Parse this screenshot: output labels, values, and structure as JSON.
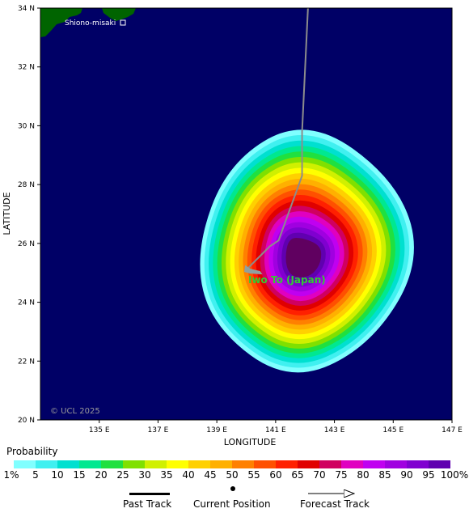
{
  "map": {
    "lon_range": [
      133,
      147
    ],
    "lat_range": [
      20,
      34
    ],
    "x_ticks": [
      {
        "lon": 135,
        "label": "135 E"
      },
      {
        "lon": 137,
        "label": "137 E"
      },
      {
        "lon": 139,
        "label": "139 E"
      },
      {
        "lon": 141,
        "label": "141 E"
      },
      {
        "lon": 143,
        "label": "143 E"
      },
      {
        "lon": 145,
        "label": "145 E"
      },
      {
        "lon": 147,
        "label": "147 E"
      }
    ],
    "y_ticks": [
      {
        "lat": 20,
        "label": "20 N"
      },
      {
        "lat": 22,
        "label": "22 N"
      },
      {
        "lat": 24,
        "label": "24 N"
      },
      {
        "lat": 26,
        "label": "26 N"
      },
      {
        "lat": 28,
        "label": "28 N"
      },
      {
        "lat": 30,
        "label": "30 N"
      },
      {
        "lat": 32,
        "label": "32 N"
      },
      {
        "lat": 34,
        "label": "34 N"
      }
    ],
    "xlabel": "LONGITUDE",
    "ylabel": "LATITUDE",
    "ocean_color": "#000066",
    "land_color": "#006400",
    "place_labels": [
      {
        "text": "Shiono-misaki",
        "lon": 135.75,
        "lat": 33.45
      },
      {
        "text": "Iwo To (Japan)",
        "lon": 141.45,
        "lat": 24.78
      }
    ],
    "copyright": "© UCL 2025",
    "forecast_track": [
      {
        "lon": 142.1,
        "lat": 34.0
      },
      {
        "lon": 141.9,
        "lat": 29.8
      },
      {
        "lon": 141.9,
        "lat": 28.3
      },
      {
        "lon": 141.1,
        "lat": 26.1
      },
      {
        "lon": 140.8,
        "lat": 25.9
      },
      {
        "lon": 140.0,
        "lat": 25.1
      }
    ],
    "current_position": {
      "lon": 140.0,
      "lat": 25.1
    },
    "probability_center": {
      "lon": 142.0,
      "lat": 25.5
    }
  },
  "legend": {
    "title": "Probability",
    "thresholds": [
      "1%",
      "5",
      "10",
      "15",
      "20",
      "25",
      "30",
      "35",
      "40",
      "45",
      "50",
      "55",
      "60",
      "65",
      "70",
      "75",
      "80",
      "85",
      "90",
      "95",
      "100%"
    ],
    "colors": [
      "#80ffff",
      "#40f0f0",
      "#00e0d0",
      "#00e890",
      "#20e040",
      "#80e000",
      "#d0f000",
      "#ffff00",
      "#ffd000",
      "#ffb000",
      "#ff8000",
      "#ff5000",
      "#ff2000",
      "#e00000",
      "#d00060",
      "#e000c0",
      "#c000f0",
      "#a000e0",
      "#8000d0",
      "#6000b0",
      "#600060"
    ]
  },
  "key": {
    "past_track": "Past Track",
    "current_position": "Current Position",
    "forecast_track": "Forecast Track"
  }
}
